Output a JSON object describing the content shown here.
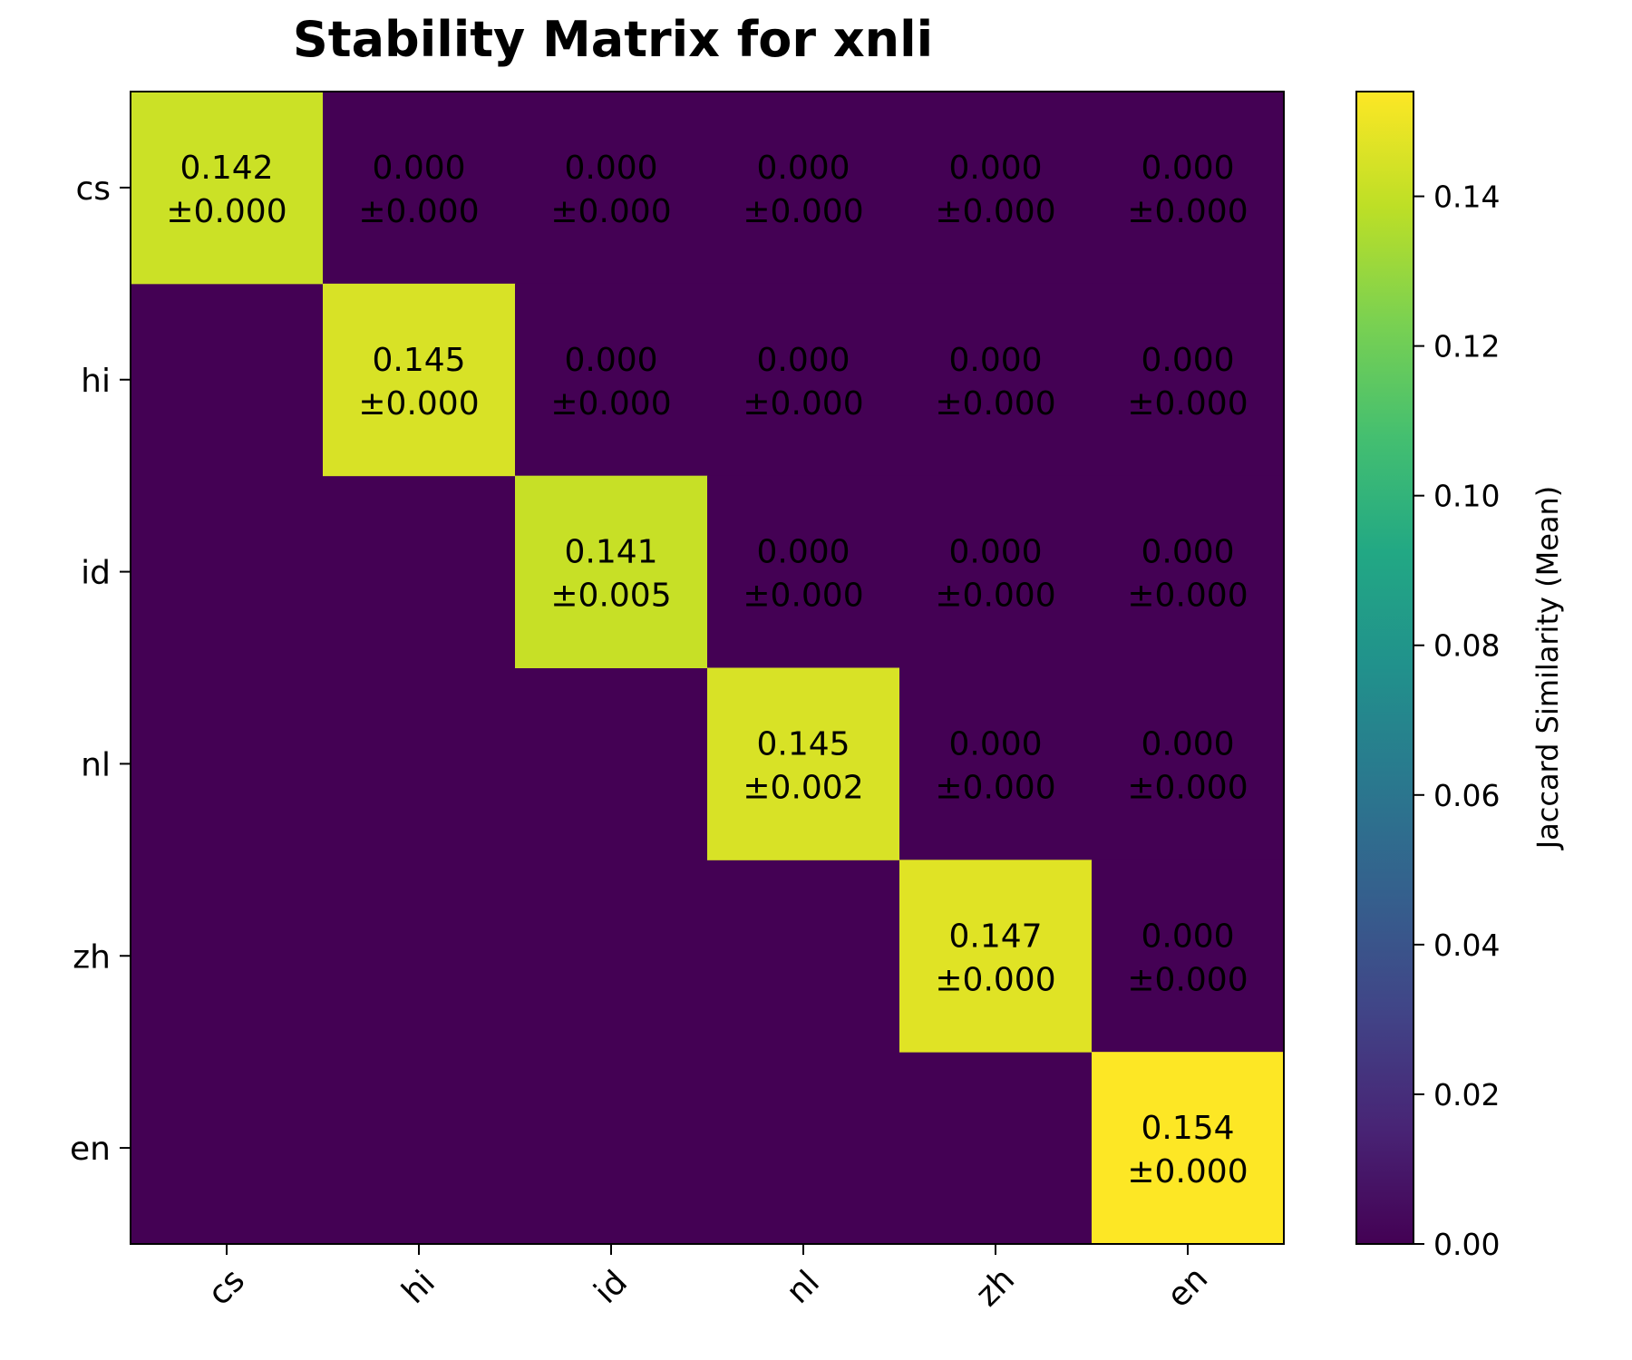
{
  "chart_data": {
    "type": "heatmap",
    "title": "Stability Matrix for xnli",
    "x_categories": [
      "cs",
      "hi",
      "id",
      "nl",
      "zh",
      "en"
    ],
    "y_categories": [
      "cs",
      "hi",
      "id",
      "nl",
      "zh",
      "en"
    ],
    "values": [
      [
        0.142,
        0.0,
        0.0,
        0.0,
        0.0,
        0.0
      ],
      [
        null,
        0.145,
        0.0,
        0.0,
        0.0,
        0.0
      ],
      [
        null,
        null,
        0.141,
        0.0,
        0.0,
        0.0
      ],
      [
        null,
        null,
        null,
        0.145,
        0.0,
        0.0
      ],
      [
        null,
        null,
        null,
        null,
        0.147,
        0.0
      ],
      [
        null,
        null,
        null,
        null,
        null,
        0.154
      ]
    ],
    "cell_labels": [
      [
        [
          "0.142",
          "±0.000"
        ],
        [
          "0.000",
          "±0.000"
        ],
        [
          "0.000",
          "±0.000"
        ],
        [
          "0.000",
          "±0.000"
        ],
        [
          "0.000",
          "±0.000"
        ],
        [
          "0.000",
          "±0.000"
        ]
      ],
      [
        null,
        [
          "0.145",
          "±0.000"
        ],
        [
          "0.000",
          "±0.000"
        ],
        [
          "0.000",
          "±0.000"
        ],
        [
          "0.000",
          "±0.000"
        ],
        [
          "0.000",
          "±0.000"
        ]
      ],
      [
        null,
        null,
        [
          "0.141",
          "±0.005"
        ],
        [
          "0.000",
          "±0.000"
        ],
        [
          "0.000",
          "±0.000"
        ],
        [
          "0.000",
          "±0.000"
        ]
      ],
      [
        null,
        null,
        null,
        [
          "0.145",
          "±0.002"
        ],
        [
          "0.000",
          "±0.000"
        ],
        [
          "0.000",
          "±0.000"
        ]
      ],
      [
        null,
        null,
        null,
        null,
        [
          "0.147",
          "±0.000"
        ],
        [
          "0.000",
          "±0.000"
        ]
      ],
      [
        null,
        null,
        null,
        null,
        null,
        [
          "0.154",
          "±0.000"
        ]
      ]
    ],
    "colorbar": {
      "label": "Jaccard Similarity (Mean)",
      "range": [
        0,
        0.154
      ],
      "ticks": [
        0.0,
        0.02,
        0.04,
        0.06,
        0.08,
        0.1,
        0.12,
        0.14
      ],
      "tick_labels": [
        "0.00",
        "0.02",
        "0.04",
        "0.06",
        "0.08",
        "0.10",
        "0.12",
        "0.14"
      ],
      "colormap": "viridis"
    }
  }
}
